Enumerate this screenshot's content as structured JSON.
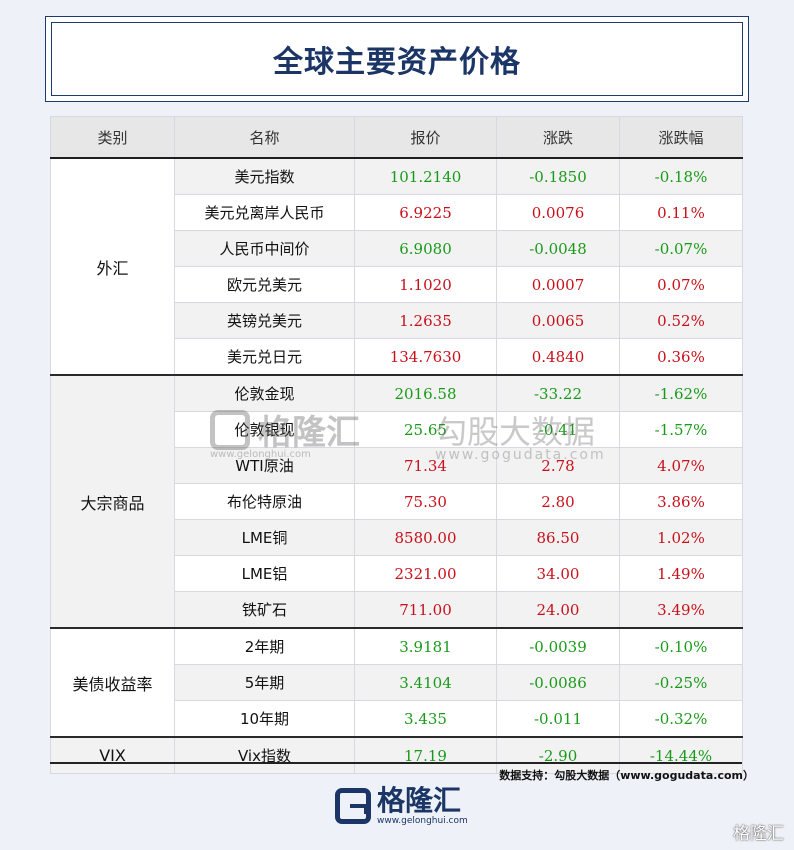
{
  "title": "全球主要资产价格",
  "chart_data": {
    "type": "table",
    "columns": [
      "类别",
      "名称",
      "报价",
      "涨跌",
      "涨跌幅"
    ],
    "groups": [
      {
        "category": "外汇",
        "rows": [
          {
            "name": "美元指数",
            "price": "101.2140",
            "change": "-0.1850",
            "pct": "-0.18%",
            "dir": "down"
          },
          {
            "name": "美元兑离岸人民币",
            "price": "6.9225",
            "change": "0.0076",
            "pct": "0.11%",
            "dir": "up"
          },
          {
            "name": "人民币中间价",
            "price": "6.9080",
            "change": "-0.0048",
            "pct": "-0.07%",
            "dir": "down"
          },
          {
            "name": "欧元兑美元",
            "price": "1.1020",
            "change": "0.0007",
            "pct": "0.07%",
            "dir": "up"
          },
          {
            "name": "英镑兑美元",
            "price": "1.2635",
            "change": "0.0065",
            "pct": "0.52%",
            "dir": "up"
          },
          {
            "name": "美元兑日元",
            "price": "134.7630",
            "change": "0.4840",
            "pct": "0.36%",
            "dir": "up"
          }
        ]
      },
      {
        "category": "大宗商品",
        "rows": [
          {
            "name": "伦敦金现",
            "price": "2016.58",
            "change": "-33.22",
            "pct": "-1.62%",
            "dir": "down"
          },
          {
            "name": "伦敦银现",
            "price": "25.65",
            "change": "-0.41",
            "pct": "-1.57%",
            "dir": "down"
          },
          {
            "name": "WTI原油",
            "price": "71.34",
            "change": "2.78",
            "pct": "4.07%",
            "dir": "up"
          },
          {
            "name": "布伦特原油",
            "price": "75.30",
            "change": "2.80",
            "pct": "3.86%",
            "dir": "up"
          },
          {
            "name": "LME铜",
            "price": "8580.00",
            "change": "86.50",
            "pct": "1.02%",
            "dir": "up"
          },
          {
            "name": "LME铝",
            "price": "2321.00",
            "change": "34.00",
            "pct": "1.49%",
            "dir": "up"
          },
          {
            "name": "铁矿石",
            "price": "711.00",
            "change": "24.00",
            "pct": "3.49%",
            "dir": "up"
          }
        ]
      },
      {
        "category": "美债收益率",
        "rows": [
          {
            "name": "2年期",
            "price": "3.9181",
            "change": "-0.0039",
            "pct": "-0.10%",
            "dir": "down"
          },
          {
            "name": "5年期",
            "price": "3.4104",
            "change": "-0.0086",
            "pct": "-0.25%",
            "dir": "down"
          },
          {
            "name": "10年期",
            "price": "3.435",
            "change": "-0.011",
            "pct": "-0.32%",
            "dir": "down"
          }
        ]
      },
      {
        "category": "VIX",
        "rows": [
          {
            "name": "Vix指数",
            "price": "17.19",
            "change": "-2.90",
            "pct": "-14.44%",
            "dir": "down"
          }
        ]
      }
    ]
  },
  "colors": {
    "up": "#c8101a",
    "down": "#1a9a1a",
    "title": "#1a3566"
  },
  "watermark": {
    "brand": "格隆汇",
    "brand_url": "www.gelonghui.com",
    "partner": "勾股大数据",
    "partner_url": "www.gogudata.com"
  },
  "footer": {
    "source": "数据支持：勾股大数据（www.gogudata.com）",
    "brand": "格隆汇",
    "brand_url": "www.gelonghui.com",
    "corner_mark": "格隆汇"
  }
}
